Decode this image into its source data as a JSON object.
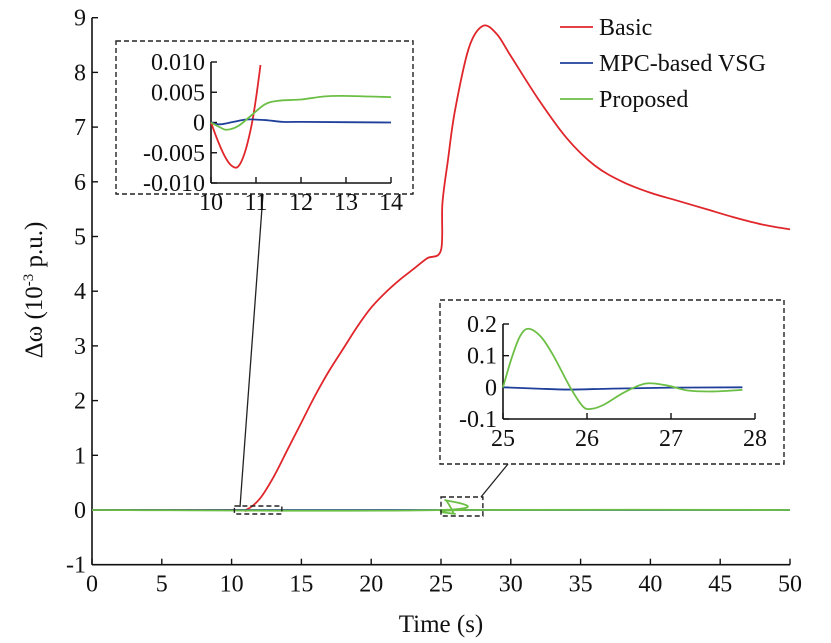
{
  "chart_data": {
    "type": "line",
    "title": "",
    "xlabel": "Time (s)",
    "ylabel_prefix": "Δω (10",
    "ylabel_exp": "-3",
    "ylabel_suffix": " p.u.)",
    "xlim": [
      0,
      50
    ],
    "ylim": [
      -1,
      9
    ],
    "xticks": [
      0,
      5,
      10,
      15,
      20,
      25,
      30,
      35,
      40,
      45,
      50
    ],
    "yticks": [
      -1,
      0,
      1,
      2,
      3,
      4,
      5,
      6,
      7,
      8,
      9
    ],
    "legend_position": "top-right",
    "colors": {
      "Basic": "#e0262b",
      "MPC-based VSG": "#1f3f9b",
      "Proposed": "#6cbf45"
    },
    "series": [
      {
        "name": "Basic",
        "x": [
          0,
          10,
          11,
          12,
          13,
          14,
          15,
          16,
          17,
          18,
          19,
          20,
          21,
          22,
          23,
          24,
          25,
          25.1,
          25.5,
          26,
          27,
          28,
          29,
          30,
          32,
          34,
          36,
          38,
          40,
          42,
          44,
          46,
          48,
          50
        ],
        "y": [
          0,
          0,
          0,
          0.2,
          0.6,
          1.1,
          1.6,
          2.1,
          2.55,
          2.95,
          3.35,
          3.7,
          3.97,
          4.2,
          4.4,
          4.6,
          4.75,
          5.6,
          6.4,
          7.3,
          8.45,
          8.85,
          8.7,
          8.3,
          7.5,
          6.8,
          6.3,
          6.0,
          5.8,
          5.65,
          5.5,
          5.35,
          5.22,
          5.13
        ]
      },
      {
        "name": "MPC-based VSG",
        "x": [
          0,
          50
        ],
        "y": [
          0,
          0
        ]
      },
      {
        "name": "Proposed",
        "x": [
          0,
          25,
          25.3,
          25.8,
          26,
          27,
          50
        ],
        "y": [
          0,
          0,
          0.18,
          0,
          -0.07,
          0,
          0
        ]
      }
    ],
    "insets": [
      {
        "xlim": [
          10,
          14
        ],
        "ylim": [
          -0.01,
          0.01
        ],
        "xticks": [
          10,
          11,
          12,
          13,
          14
        ],
        "yticks": [
          -0.01,
          -0.005,
          0,
          0.005,
          0.01
        ],
        "xtick_labels": [
          "10",
          "11",
          "12",
          "13",
          "14"
        ],
        "ytick_labels": [
          "-0.010",
          "-0.005",
          "0",
          "0.005",
          "0.010"
        ],
        "series": [
          {
            "name": "Basic",
            "x": [
              10,
              10.15,
              10.3,
              10.45,
              10.6,
              10.75,
              10.9,
              11.0,
              11.1
            ],
            "y": [
              0,
              -0.003,
              -0.0055,
              -0.0071,
              -0.0073,
              -0.005,
              -0.0005,
              0.004,
              0.0095
            ]
          },
          {
            "name": "MPC-based VSG",
            "x": [
              10,
              10.2,
              10.5,
              10.8,
              11.2,
              11.6,
              12,
              14
            ],
            "y": [
              0,
              -0.0003,
              0.0001,
              0.0005,
              0.0004,
              0.0001,
              0.0001,
              0
            ]
          },
          {
            "name": "Proposed",
            "x": [
              10,
              10.2,
              10.35,
              10.6,
              10.9,
              11.2,
              11.5,
              12,
              12.5,
              12.9,
              13.5,
              14
            ],
            "y": [
              0,
              -0.0008,
              -0.0012,
              -0.0006,
              0.0012,
              0.003,
              0.0036,
              0.0038,
              0.0043,
              0.0044,
              0.0043,
              0.0042
            ]
          }
        ]
      },
      {
        "xlim": [
          25,
          28
        ],
        "ylim": [
          -0.1,
          0.2
        ],
        "xticks": [
          25,
          26,
          27,
          28
        ],
        "yticks": [
          -0.1,
          0,
          0.1,
          0.2
        ],
        "xtick_labels": [
          "25",
          "26",
          "27",
          "28"
        ],
        "ytick_labels": [
          "-0.1",
          "0",
          "0.1",
          "0.2"
        ],
        "series": [
          {
            "name": "MPC-based VSG",
            "x": [
              25,
              25.4,
              25.8,
              26.3,
              27,
              27.85
            ],
            "y": [
              0,
              -0.004,
              -0.007,
              -0.004,
              -0.001,
              0
            ]
          },
          {
            "name": "Proposed",
            "x": [
              25,
              25.1,
              25.2,
              25.3,
              25.45,
              25.6,
              25.8,
              25.95,
              26.05,
              26.2,
              26.45,
              26.7,
              26.95,
              27.2,
              27.5,
              27.85
            ],
            "y": [
              0,
              0.09,
              0.16,
              0.185,
              0.16,
              0.1,
              0.0,
              -0.06,
              -0.068,
              -0.055,
              -0.015,
              0.012,
              0.006,
              -0.01,
              -0.013,
              -0.008
            ]
          }
        ]
      }
    ]
  }
}
